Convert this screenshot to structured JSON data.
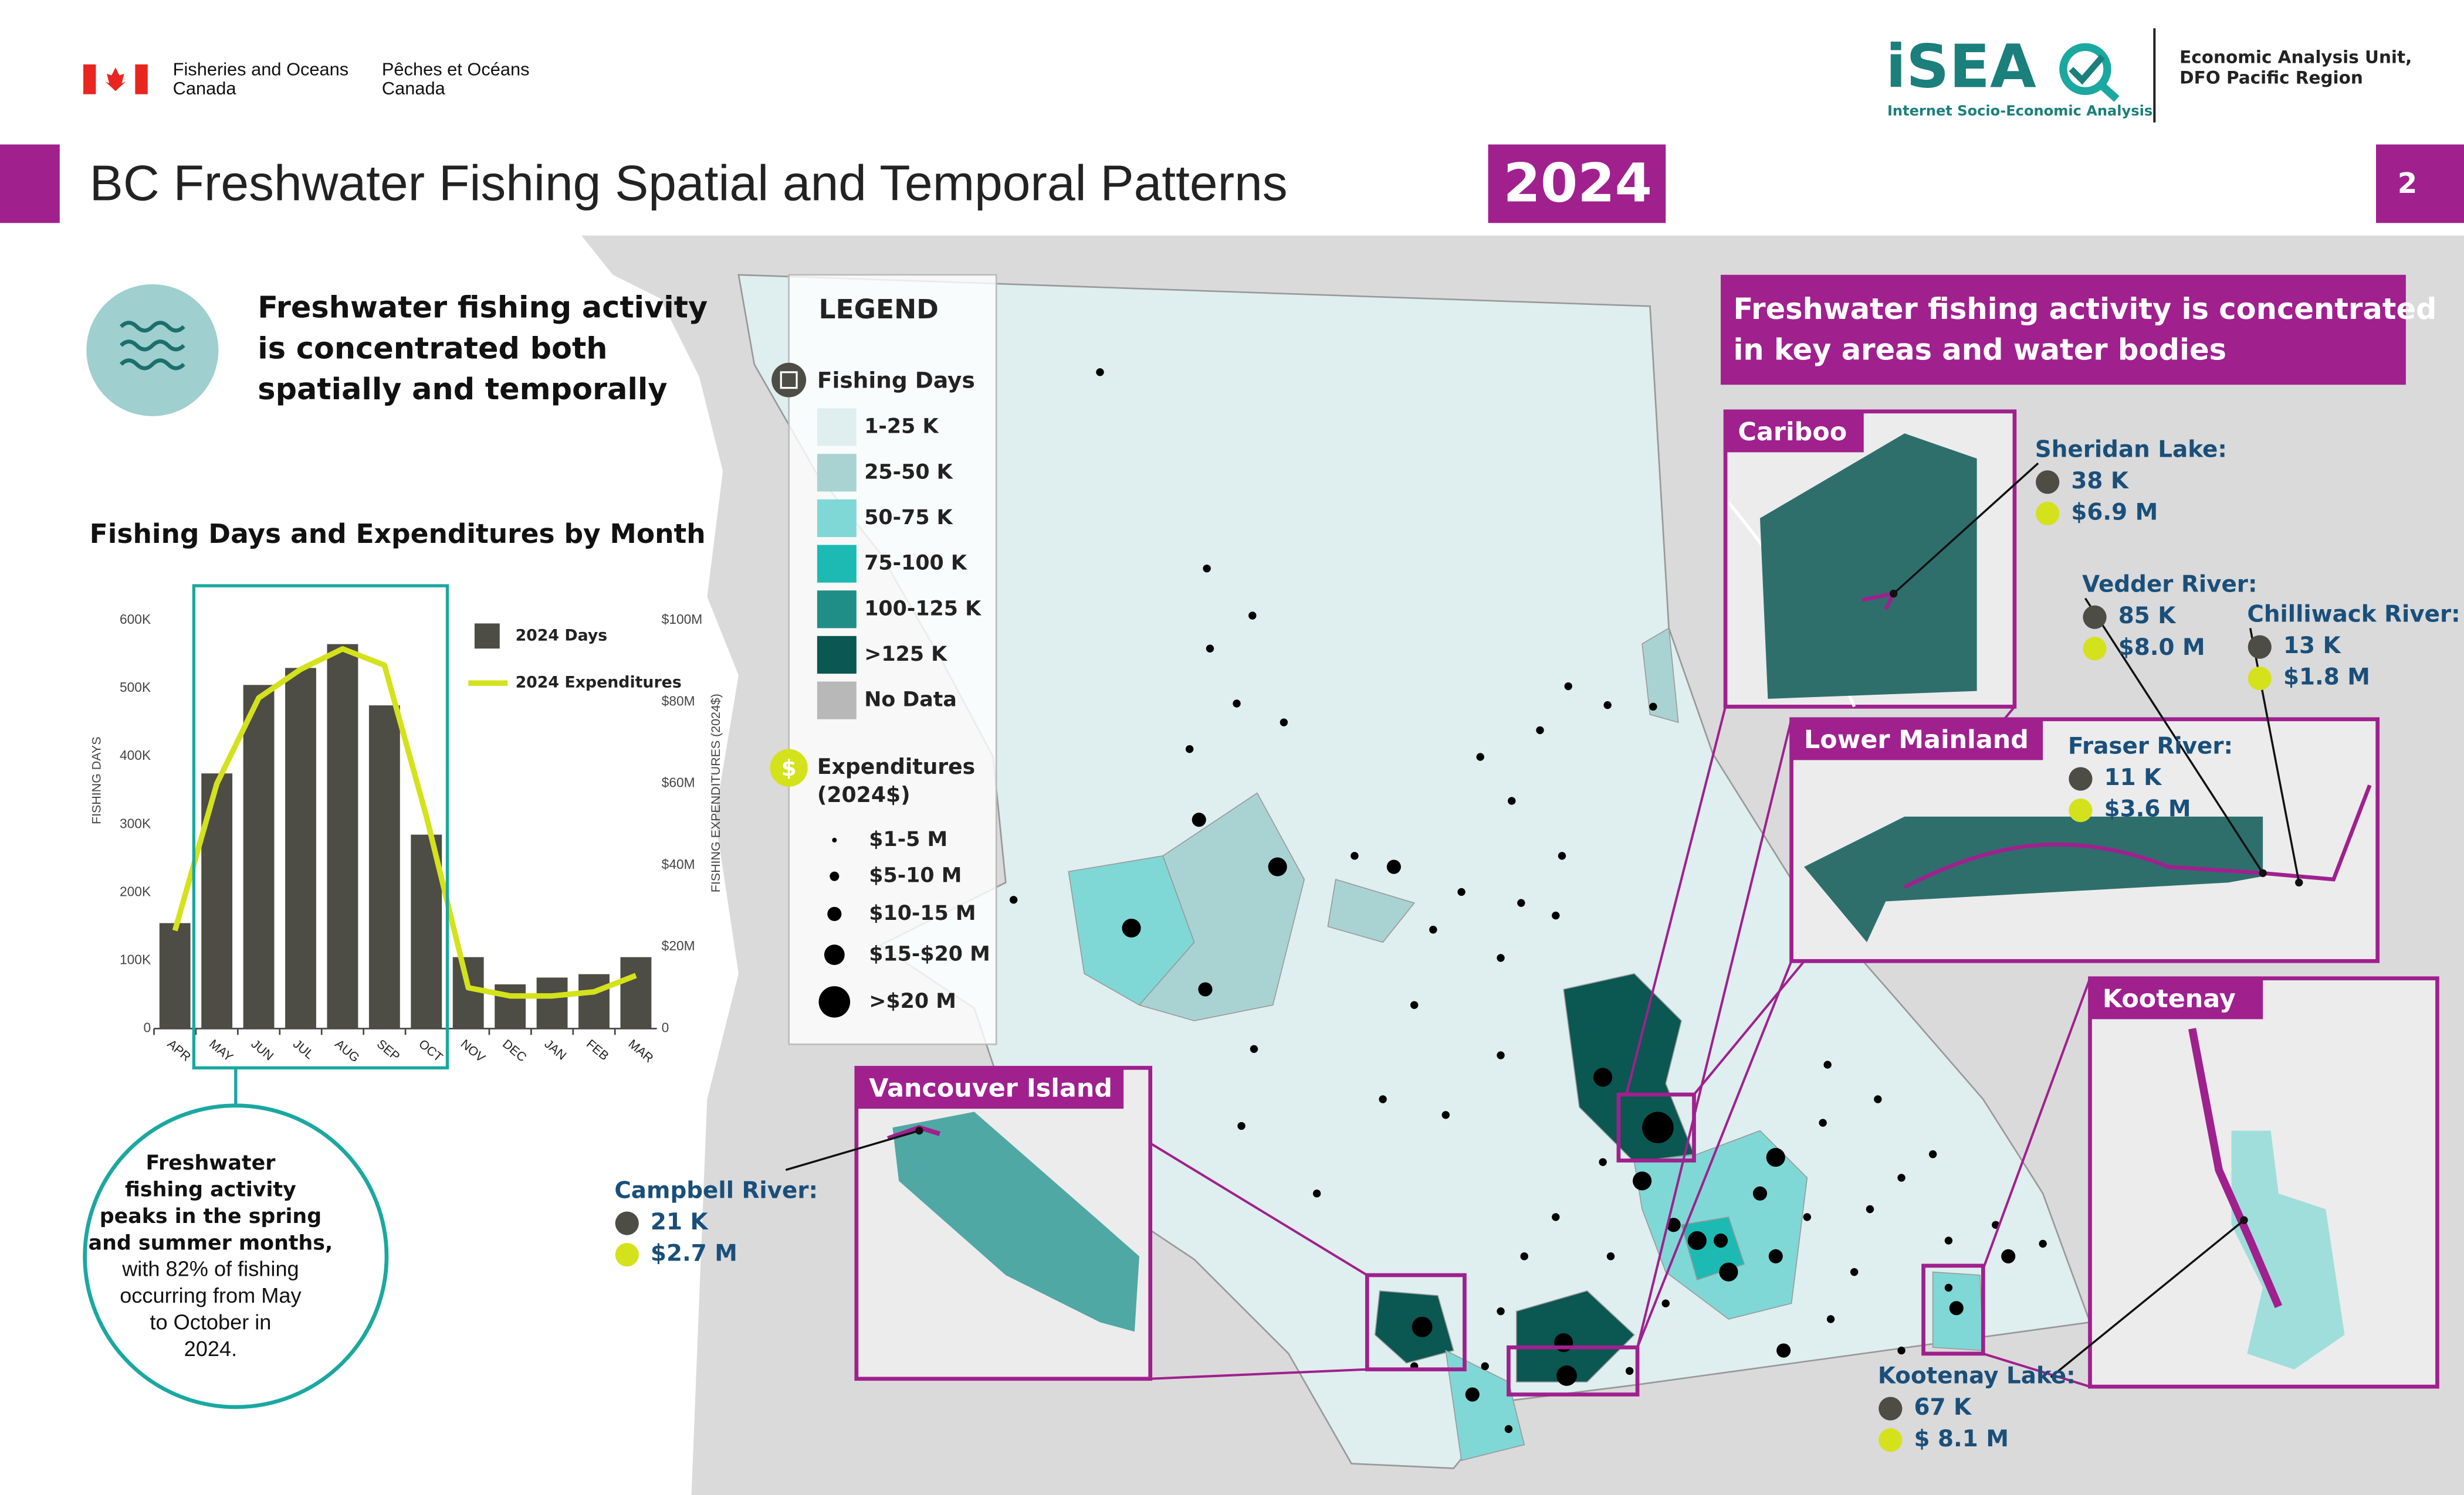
{
  "header": {
    "dept_en": [
      "Fisheries and Oceans",
      "Canada"
    ],
    "dept_fr": [
      "Pêches et Océans",
      "Canada"
    ],
    "logo": "iSEA",
    "logo_tagline": "Internet Socio-Economic Analysis",
    "unit": [
      "Economic Analysis Unit,",
      "DFO Pacific Region"
    ],
    "title": "BC Freshwater Fishing Spatial and Temporal Patterns",
    "year": 2024,
    "page": 2
  },
  "intro": [
    "Freshwater fishing activity",
    "is concentrated both",
    "spatially and temporally"
  ],
  "chart_data": {
    "type": "bar",
    "title": "Fishing Days and Expenditures by Month",
    "categories": [
      "APR",
      "MAY",
      "JUN",
      "JUL",
      "AUG",
      "SEP",
      "OCT",
      "NOV",
      "DEC",
      "JAN",
      "FEB",
      "MAR"
    ],
    "series": [
      {
        "name": "2024 Days",
        "type": "bar",
        "color": "#4d4c45",
        "values": [
          155000,
          375000,
          505000,
          530000,
          565000,
          475000,
          285000,
          105000,
          65000,
          75000,
          80000,
          105000
        ]
      },
      {
        "name": "2024 Expenditures",
        "type": "line",
        "axis": "y2",
        "color": "#d4e21b",
        "values": [
          24000000,
          60000000,
          81000000,
          88000000,
          93000000,
          89000000,
          52000000,
          10000000,
          8000000,
          8000000,
          9000000,
          13000000
        ]
      }
    ],
    "ylabel": "FISHING DAYS",
    "y2label": "FISHING EXPENDITURES (2024$)",
    "ylim": [
      0,
      600000
    ],
    "yticks": [
      0,
      {
        "value": 100000,
        "label": "100K"
      },
      {
        "value": 200000,
        "label": "200K"
      },
      {
        "value": 300000,
        "label": "300K"
      },
      {
        "value": 400000,
        "label": "400K"
      },
      {
        "value": 500000,
        "label": "500K"
      },
      {
        "value": 600000,
        "label": "600K"
      }
    ],
    "y2lim": [
      0,
      100000000
    ],
    "y2ticks": [
      0,
      {
        "value": 20000000,
        "label": "$20M"
      },
      {
        "value": 40000000,
        "label": "$40M"
      },
      {
        "value": 60000000,
        "label": "$60M"
      },
      {
        "value": 80000000,
        "label": "$80M"
      },
      {
        "value": 100000000,
        "label": "$100M"
      }
    ],
    "highlight_color": "#1aa8a0"
  },
  "chart_callout": {
    "bold": [
      "Freshwater",
      "fishing activity",
      "peaks in the spring",
      "and summer months,"
    ],
    "normal": [
      "with 82% of fishing",
      "occurring from May",
      "to October in",
      "2024."
    ]
  },
  "map": {
    "heading": [
      "Freshwater fishing activity is concentrated",
      "in key areas and water bodies"
    ],
    "legend": {
      "title": "LEGEND",
      "days_title": "Fishing Days",
      "days_classes": [
        {
          "label": "1-25 K",
          "color": "#dfeeee"
        },
        {
          "label": "25-50 K",
          "color": "#a9d3d3"
        },
        {
          "label": "50-75 K",
          "color": "#7fd8d6"
        },
        {
          "label": "75-100 K",
          "color": "#1dbab3"
        },
        {
          "label": "100-125 K",
          "color": "#1f8e87"
        },
        {
          "label": ">125 K",
          "color": "#0b5752"
        },
        {
          "label": "No Data",
          "color": "#b8b8b8"
        }
      ],
      "exp_title": [
        "Expenditures",
        "(2024$)"
      ],
      "exp_classes": [
        "$1-5 M",
        "$5-10 M",
        "$10-15 M",
        "$15-$20 M",
        ">$20 M"
      ]
    },
    "insets": [
      "Cariboo",
      "Lower Mainland",
      "Kootenay",
      "Vancouver Island"
    ],
    "sites": [
      {
        "name": "Sheridan Lake:",
        "days": "38 K",
        "expenditure": "$6.9 M"
      },
      {
        "name": "Vedder River:",
        "days": "85 K",
        "expenditure": "$8.0 M"
      },
      {
        "name": "Chilliwack River:",
        "days": "13 K",
        "expenditure": "$1.8 M"
      },
      {
        "name": "Fraser River:",
        "days": "11 K",
        "expenditure": "$3.6 M"
      },
      {
        "name": "Kootenay Lake:",
        "days": "67 K",
        "expenditure": "$ 8.1 M"
      },
      {
        "name": "Campbell River:",
        "days": "21 K",
        "expenditure": "$2.7 M"
      }
    ]
  }
}
